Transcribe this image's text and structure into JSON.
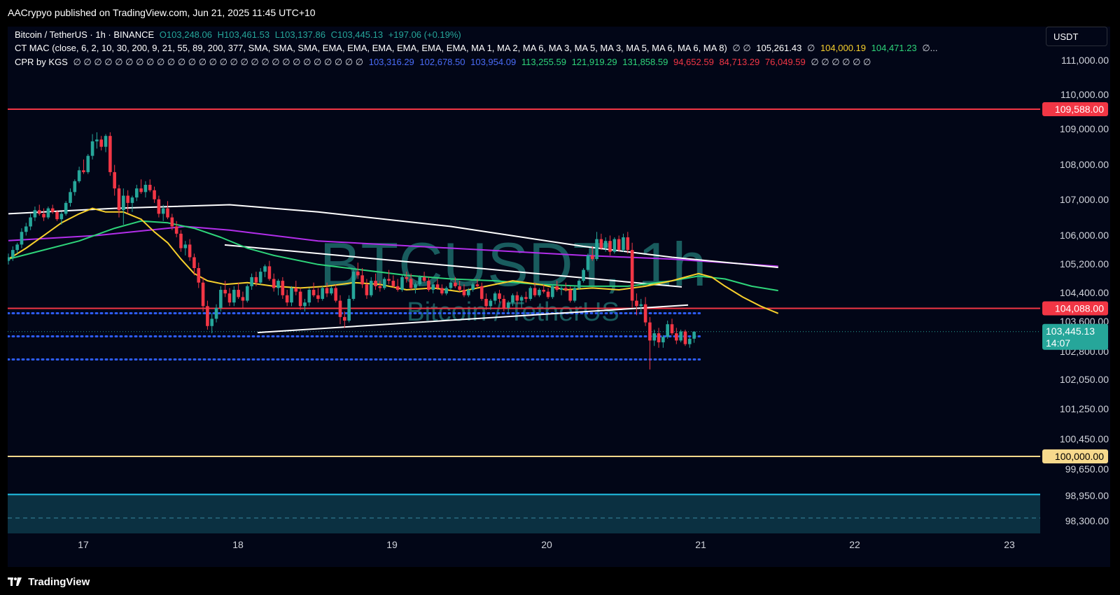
{
  "header": {
    "published_text": "AACrypyo published on TradingView.com, Jun 21, 2025 11:45 UTC+10"
  },
  "legend": {
    "symbol": "Bitcoin / TetherUS · 1h · BINANCE",
    "open": "O103,248.06",
    "high": "H103,461.53",
    "low": "L103,137.86",
    "close": "C103,445.13",
    "change": "+197.06 (+0.19%)",
    "indicator1_name": "CT MAC (close, 6, 2, 10, 30, 200, 9, 21, 55, 89, 200, 377, SMA, SMA, SMA, EMA, EMA, EMA, EMA, EMA, EMA, MA 1, MA 2, MA 6, MA 3, MA 5, MA 3, MA 5, MA 6, MA 6, MA 8)",
    "indicator1_empty": "∅ ∅",
    "indicator1_values": [
      "105,261.43",
      "104,000.19",
      "104,471.23"
    ],
    "indicator1_empty2": "∅",
    "indicator1_more": "∅...",
    "indicator2_name": "CPR by KGS",
    "indicator2_empty": "∅ ∅ ∅ ∅ ∅ ∅ ∅ ∅ ∅ ∅ ∅ ∅ ∅ ∅ ∅ ∅ ∅ ∅ ∅ ∅ ∅ ∅ ∅ ∅ ∅ ∅ ∅ ∅",
    "indicator2_values": [
      "103,316.29",
      "102,678.50",
      "103,954.09",
      "113,255.59",
      "121,919.29",
      "131,858.59",
      "94,652.59",
      "84,713.29",
      "76,049.59"
    ],
    "indicator2_empty2": "∅ ∅ ∅ ∅ ∅ ∅"
  },
  "colors": {
    "up": "#26a69a",
    "down": "#f23645",
    "background": "#020617",
    "ma_yellow": "#f7d02c",
    "ma_green": "#2ed47a",
    "ma_purple": "#b22eea",
    "ma_white": "#ffffff",
    "resistance": "#f23645",
    "support": "#f7d98c",
    "pivot_dots": "#2d5cf6",
    "zone": "#22c4e8",
    "watermark": "#1e6b6b"
  },
  "scale": {
    "currency": "USDT",
    "countdown": "14:07"
  },
  "footer": {
    "brand": "TradingView",
    "logo_icon": "tradingview-logo-icon"
  },
  "chart_data": {
    "type": "candlestick",
    "symbol": "BTCUSDT",
    "timeframe": "1h",
    "exchange": "BINANCE",
    "watermark": {
      "title": "BTCUSDT, 1h",
      "subtitle": "Bitcoin / TetherUS"
    },
    "x_ticks": [
      "17",
      "18",
      "19",
      "20",
      "21",
      "22",
      "23"
    ],
    "y_ticks": [
      "111,000.00",
      "110,000.00",
      "109,000.00",
      "108,000.00",
      "107,000.00",
      "106,000.00",
      "105,200.00",
      "104,400.00",
      "103,600.00",
      "102,800.00",
      "102,050.00",
      "101,250.00",
      "100,450.00",
      "99,650.00",
      "98,950.00",
      "98,300.00"
    ],
    "ylim": [
      98000,
      111500
    ],
    "last_price": "103,445.13",
    "horizontal_levels": [
      {
        "price": 109588,
        "label": "109,588.00",
        "kind": "resistance"
      },
      {
        "price": 104088,
        "label": "104,088.00",
        "kind": "resistance"
      },
      {
        "price": 100000,
        "label": "100,000.00",
        "kind": "support"
      }
    ],
    "pivot_levels": [
      103954.09,
      103316.29,
      102678.5
    ],
    "demand_zone": [
      98000,
      98950
    ],
    "trend_lines": [
      {
        "from": [
          "Jun 18 00h",
          105840
        ],
        "to": [
          "Jun 20 21h",
          104680
        ]
      },
      {
        "from": [
          "Jun 18 01h",
          103420
        ],
        "to": [
          "Jun 20 22h",
          104180
        ]
      }
    ],
    "moving_averages": {
      "yellow": [
        [
          0,
          105450
        ],
        [
          4,
          105750
        ],
        [
          8,
          106100
        ],
        [
          12,
          106450
        ],
        [
          16,
          106700
        ],
        [
          19,
          106850
        ],
        [
          22,
          106750
        ],
        [
          26,
          106750
        ],
        [
          30,
          106550
        ],
        [
          33,
          106200
        ],
        [
          36,
          105900
        ],
        [
          39,
          105450
        ],
        [
          42,
          105050
        ],
        [
          45,
          104850
        ],
        [
          49,
          104750
        ],
        [
          54,
          104800
        ],
        [
          60,
          104700
        ],
        [
          66,
          104650
        ],
        [
          72,
          104700
        ],
        [
          78,
          104800
        ],
        [
          84,
          104750
        ],
        [
          90,
          104600
        ],
        [
          96,
          104650
        ],
        [
          102,
          104550
        ],
        [
          108,
          104700
        ],
        [
          114,
          104850
        ],
        [
          120,
          104750
        ],
        [
          126,
          104600
        ],
        [
          132,
          104650
        ],
        [
          138,
          104600
        ],
        [
          144,
          104700
        ],
        [
          150,
          104850
        ],
        [
          153,
          104950
        ],
        [
          156,
          105050
        ],
        [
          159,
          104950
        ],
        [
          162,
          104700
        ],
        [
          166,
          104400
        ],
        [
          170,
          104150
        ],
        [
          174,
          103950
        ]
      ],
      "green": [
        [
          0,
          105450
        ],
        [
          8,
          105700
        ],
        [
          16,
          105950
        ],
        [
          24,
          106300
        ],
        [
          30,
          106500
        ],
        [
          36,
          106450
        ],
        [
          42,
          106300
        ],
        [
          48,
          106050
        ],
        [
          54,
          105750
        ],
        [
          60,
          105550
        ],
        [
          70,
          105300
        ],
        [
          80,
          105150
        ],
        [
          90,
          105000
        ],
        [
          100,
          104900
        ],
        [
          110,
          104850
        ],
        [
          120,
          104750
        ],
        [
          130,
          104700
        ],
        [
          140,
          104700
        ],
        [
          150,
          104850
        ],
        [
          156,
          104980
        ],
        [
          162,
          104900
        ],
        [
          168,
          104700
        ],
        [
          174,
          104580
        ]
      ],
      "purple": [
        [
          0,
          105960
        ],
        [
          20,
          106100
        ],
        [
          40,
          106350
        ],
        [
          50,
          106250
        ],
        [
          70,
          105950
        ],
        [
          100,
          105750
        ],
        [
          130,
          105550
        ],
        [
          150,
          105450
        ],
        [
          174,
          105250
        ]
      ],
      "white": [
        [
          0,
          106700
        ],
        [
          24,
          106850
        ],
        [
          50,
          106950
        ],
        [
          70,
          106750
        ],
        [
          100,
          106350
        ],
        [
          130,
          105800
        ],
        [
          150,
          105500
        ],
        [
          174,
          105220
        ]
      ]
    },
    "candles": [
      [
        105400,
        105600,
        105300,
        105500
      ],
      [
        105500,
        105800,
        105400,
        105700
      ],
      [
        105700,
        105900,
        105600,
        105850
      ],
      [
        105850,
        106300,
        105750,
        106200
      ],
      [
        106200,
        106450,
        106100,
        106350
      ],
      [
        106350,
        106700,
        106250,
        106600
      ],
      [
        106600,
        106900,
        106500,
        106800
      ],
      [
        106800,
        106950,
        106650,
        106700
      ],
      [
        106700,
        106850,
        106500,
        106600
      ],
      [
        106600,
        106900,
        106550,
        106850
      ],
      [
        106850,
        106950,
        106700,
        106750
      ],
      [
        106750,
        106800,
        106500,
        106550
      ],
      [
        106550,
        106750,
        106400,
        106700
      ],
      [
        106700,
        107050,
        106650,
        107000
      ],
      [
        107000,
        107400,
        106900,
        107300
      ],
      [
        107300,
        107650,
        107200,
        107600
      ],
      [
        107600,
        108000,
        107550,
        107900
      ],
      [
        107900,
        108200,
        107800,
        107850
      ],
      [
        107850,
        108350,
        107800,
        108300
      ],
      [
        108300,
        108900,
        108200,
        108700
      ],
      [
        108700,
        108950,
        108500,
        108750
      ],
      [
        108750,
        108850,
        108450,
        108550
      ],
      [
        108550,
        108900,
        108400,
        108850
      ],
      [
        108850,
        108950,
        107750,
        107850
      ],
      [
        107850,
        108050,
        107200,
        107400
      ],
      [
        107400,
        107500,
        106600,
        106800
      ],
      [
        106800,
        107400,
        106400,
        107200
      ],
      [
        107200,
        107350,
        106700,
        107000
      ],
      [
        107000,
        107200,
        106750,
        107150
      ],
      [
        107150,
        107500,
        107050,
        107400
      ],
      [
        107400,
        107650,
        107250,
        107300
      ],
      [
        107300,
        107600,
        107150,
        107500
      ],
      [
        107500,
        107650,
        107300,
        107350
      ],
      [
        107350,
        107450,
        107000,
        107100
      ],
      [
        107100,
        107200,
        106600,
        106700
      ],
      [
        106700,
        106950,
        106500,
        106850
      ],
      [
        106850,
        107050,
        106550,
        106600
      ],
      [
        106600,
        106700,
        106250,
        106350
      ],
      [
        106350,
        106500,
        106050,
        106150
      ],
      [
        106150,
        106250,
        105650,
        105750
      ],
      [
        105750,
        105950,
        105550,
        105850
      ],
      [
        105850,
        106000,
        105400,
        105500
      ],
      [
        105500,
        105600,
        105000,
        105200
      ],
      [
        105200,
        105350,
        104650,
        104800
      ],
      [
        104800,
        104950,
        104000,
        104150
      ],
      [
        104150,
        104300,
        103500,
        103600
      ],
      [
        103600,
        103950,
        103400,
        103800
      ],
      [
        103800,
        104200,
        103700,
        104100
      ],
      [
        104100,
        104700,
        104000,
        104600
      ],
      [
        104600,
        104850,
        104400,
        104500
      ],
      [
        104500,
        104650,
        104150,
        104250
      ],
      [
        104250,
        104700,
        104150,
        104600
      ],
      [
        104600,
        104800,
        104350,
        104400
      ],
      [
        104400,
        104550,
        104100,
        104300
      ],
      [
        104300,
        104750,
        104250,
        104700
      ],
      [
        104700,
        105050,
        104600,
        104950
      ],
      [
        104950,
        105100,
        104700,
        104800
      ],
      [
        104800,
        105200,
        104750,
        105100
      ],
      [
        105100,
        105300,
        104950,
        105250
      ],
      [
        105250,
        105400,
        104850,
        104900
      ],
      [
        104900,
        105050,
        104550,
        104650
      ],
      [
        104650,
        104900,
        104450,
        104850
      ],
      [
        104850,
        104950,
        104350,
        104450
      ],
      [
        104450,
        104600,
        104150,
        104250
      ],
      [
        104250,
        104700,
        104150,
        104650
      ],
      [
        104650,
        104850,
        104450,
        104550
      ],
      [
        104550,
        104650,
        104050,
        104150
      ],
      [
        104150,
        104350,
        104000,
        104250
      ],
      [
        104250,
        104650,
        104150,
        104600
      ],
      [
        104600,
        104800,
        104400,
        104450
      ],
      [
        104450,
        104650,
        104250,
        104350
      ],
      [
        104350,
        104700,
        104300,
        104650
      ],
      [
        104650,
        104800,
        104400,
        104500
      ],
      [
        104500,
        104700,
        104450,
        104650
      ],
      [
        104650,
        104750,
        104250,
        104300
      ],
      [
        104300,
        104450,
        103650,
        103850
      ],
      [
        103850,
        104000,
        103550,
        103750
      ],
      [
        103750,
        104450,
        103700,
        104350
      ],
      [
        104350,
        105200,
        104300,
        105100
      ],
      [
        105100,
        105350,
        104900,
        105000
      ],
      [
        105000,
        105200,
        104650,
        104750
      ],
      [
        104750,
        104900,
        104350,
        104450
      ],
      [
        104450,
        104950,
        104400,
        104850
      ],
      [
        104850,
        105050,
        104600,
        104700
      ],
      [
        104700,
        104850,
        104550,
        104650
      ],
      [
        104650,
        104950,
        104600,
        104900
      ],
      [
        104900,
        105150,
        104750,
        104850
      ],
      [
        104850,
        105000,
        104650,
        104700
      ],
      [
        104700,
        104900,
        104550,
        104600
      ],
      [
        104600,
        105000,
        104550,
        104950
      ],
      [
        104950,
        105100,
        104800,
        104900
      ],
      [
        104900,
        105050,
        104600,
        104650
      ],
      [
        104650,
        104800,
        104500,
        104750
      ],
      [
        104750,
        105000,
        104700,
        104950
      ],
      [
        104950,
        105100,
        104800,
        104850
      ],
      [
        104850,
        104950,
        104550,
        104600
      ],
      [
        104600,
        104800,
        104500,
        104750
      ],
      [
        104750,
        104900,
        104600,
        104650
      ],
      [
        104650,
        104750,
        104450,
        104500
      ],
      [
        104500,
        104700,
        104450,
        104650
      ],
      [
        104650,
        104900,
        104600,
        104800
      ],
      [
        104800,
        104950,
        104650,
        104700
      ],
      [
        104700,
        104850,
        104550,
        104600
      ],
      [
        104600,
        104750,
        104400,
        104450
      ],
      [
        104450,
        104650,
        104400,
        104600
      ],
      [
        104600,
        104800,
        104550,
        104750
      ],
      [
        104750,
        104900,
        104650,
        104700
      ],
      [
        104700,
        104800,
        104300,
        104350
      ],
      [
        104350,
        104500,
        104050,
        104150
      ],
      [
        104150,
        104350,
        104050,
        104300
      ],
      [
        104300,
        104550,
        104200,
        104500
      ],
      [
        104500,
        104600,
        104250,
        104350
      ],
      [
        104350,
        104450,
        104000,
        104100
      ],
      [
        104100,
        104300,
        103950,
        104250
      ],
      [
        104250,
        104500,
        104150,
        104450
      ],
      [
        104450,
        104550,
        104200,
        104300
      ],
      [
        104300,
        104450,
        104100,
        104400
      ],
      [
        104400,
        104550,
        104250,
        104350
      ],
      [
        104350,
        104700,
        104300,
        104650
      ],
      [
        104650,
        104800,
        104400,
        104450
      ],
      [
        104450,
        104650,
        104400,
        104600
      ],
      [
        104600,
        104750,
        104500,
        104550
      ],
      [
        104550,
        104650,
        104350,
        104400
      ],
      [
        104400,
        104750,
        104350,
        104700
      ],
      [
        104700,
        104850,
        104550,
        104600
      ],
      [
        104600,
        104700,
        104450,
        104650
      ],
      [
        104650,
        104800,
        104550,
        104600
      ],
      [
        104600,
        104700,
        104250,
        104300
      ],
      [
        104300,
        104700,
        104250,
        104650
      ],
      [
        104650,
        104900,
        104600,
        104850
      ],
      [
        104850,
        105200,
        104800,
        105150
      ],
      [
        105150,
        105600,
        105100,
        105550
      ],
      [
        105550,
        105800,
        105400,
        105450
      ],
      [
        105450,
        106200,
        105400,
        106000
      ],
      [
        106000,
        106150,
        105700,
        105750
      ],
      [
        105750,
        106050,
        105650,
        105950
      ],
      [
        105950,
        106100,
        105550,
        105650
      ],
      [
        105650,
        106050,
        105600,
        106000
      ],
      [
        106000,
        106100,
        105650,
        105700
      ],
      [
        105700,
        106150,
        105650,
        106050
      ],
      [
        106050,
        106200,
        105600,
        105700
      ],
      [
        105700,
        105900,
        104100,
        104300
      ],
      [
        104300,
        104500,
        103900,
        104150
      ],
      [
        104150,
        104350,
        103950,
        104200
      ],
      [
        104200,
        104400,
        103600,
        103700
      ],
      [
        103700,
        103850,
        102400,
        103200
      ],
      [
        103200,
        103500,
        103050,
        103400
      ],
      [
        103400,
        103550,
        103000,
        103150
      ],
      [
        103150,
        103350,
        103000,
        103300
      ],
      [
        103300,
        103750,
        103250,
        103650
      ],
      [
        103650,
        103800,
        103350,
        103400
      ],
      [
        103400,
        103550,
        103100,
        103200
      ],
      [
        103200,
        103500,
        103150,
        103450
      ],
      [
        103450,
        103500,
        103050,
        103100
      ],
      [
        103100,
        103300,
        103000,
        103250
      ],
      [
        103250,
        103461,
        103137,
        103445
      ]
    ]
  }
}
